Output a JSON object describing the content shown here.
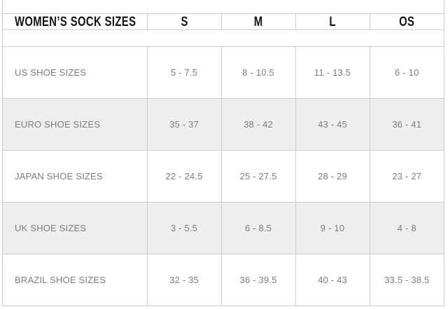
{
  "header": {
    "title": "WOMEN’S SOCK SIZES",
    "columns": [
      "S",
      "M",
      "L",
      "OS"
    ]
  },
  "table": {
    "rows": [
      {
        "label": "US SHOE SIZES",
        "values": [
          "5 - 7.5",
          "8 - 10.5",
          "11 - 13.5",
          "6 - 10"
        ]
      },
      {
        "label": "EURO SHOE SIZES",
        "values": [
          "35 - 37",
          "38 - 42",
          "43 - 45",
          "36 - 41"
        ]
      },
      {
        "label": "JAPAN SHOE SIZES",
        "values": [
          "22 - 24.5",
          "25 - 27.5",
          "28 - 29",
          "23 - 27"
        ]
      },
      {
        "label": "UK SHOE SIZES",
        "values": [
          "3 - 5.5",
          "6 - 8.5",
          "9 - 10",
          "4 - 8"
        ]
      },
      {
        "label": "BRAZIL SHOE SIZES",
        "values": [
          "32 - 35",
          "36 - 39.5",
          "40 - 43",
          "33.5 - 38.5"
        ]
      }
    ]
  },
  "chart_data": {
    "type": "table",
    "title": "WOMEN’S SOCK SIZES",
    "columns": [
      "WOMEN’S SOCK SIZES",
      "S",
      "M",
      "L",
      "OS"
    ],
    "rows": [
      [
        "US SHOE SIZES",
        "5 - 7.5",
        "8 - 10.5",
        "11 - 13.5",
        "6 - 10"
      ],
      [
        "EURO SHOE SIZES",
        "35 - 37",
        "38 - 42",
        "43 - 45",
        "36 - 41"
      ],
      [
        "JAPAN SHOE SIZES",
        "22 - 24.5",
        "25 - 27.5",
        "28 - 29",
        "23 - 27"
      ],
      [
        "UK SHOE SIZES",
        "3 - 5.5",
        "6 - 8.5",
        "9 - 10",
        "4 - 8"
      ],
      [
        "BRAZIL SHOE SIZES",
        "32 - 35",
        "36 - 39.5",
        "40 - 43",
        "33.5 - 38.5"
      ]
    ]
  },
  "colors": {
    "background": "#ffffff",
    "border": "#cccccc",
    "row_alt_bg": "#eeeeee",
    "header_text": "#141414",
    "body_text": "#7d7d7d"
  }
}
